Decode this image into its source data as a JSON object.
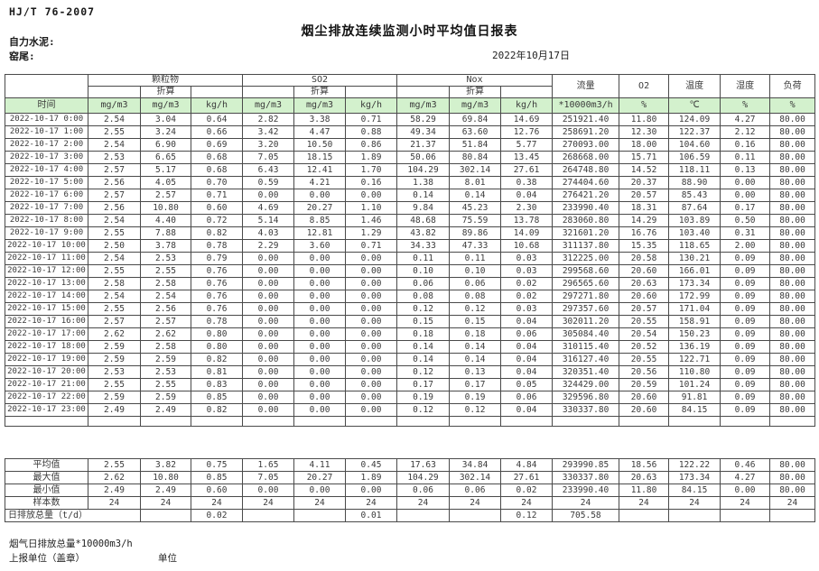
{
  "page": {
    "standard": "HJ/T 76-2007",
    "title": "烟尘排放连续监测小时平均值日报表",
    "company": "自力水泥:",
    "location": "窑尾:",
    "date": "2022年10月17日"
  },
  "table": {
    "time_header": "时间",
    "converted_label": "折算",
    "groups": [
      {
        "label": "颗粒物"
      },
      {
        "label": "SO2"
      },
      {
        "label": "Nox"
      }
    ],
    "single_cols": [
      "流量",
      "O2",
      "温度",
      "湿度",
      "负荷"
    ],
    "units": [
      "mg/m3",
      "mg/m3",
      "kg/h",
      "mg/m3",
      "mg/m3",
      "kg/h",
      "mg/m3",
      "mg/m3",
      "kg/h",
      "*10000m3/h",
      "%",
      "℃",
      "%",
      "%"
    ],
    "rows": [
      {
        "time": "2022-10-17 0:00",
        "values": [
          "2.54",
          "3.04",
          "0.64",
          "2.82",
          "3.38",
          "0.71",
          "58.29",
          "69.84",
          "14.69",
          "251921.40",
          "11.80",
          "124.09",
          "4.27",
          "80.00"
        ]
      },
      {
        "time": "2022-10-17 1:00",
        "values": [
          "2.55",
          "3.24",
          "0.66",
          "3.42",
          "4.47",
          "0.88",
          "49.34",
          "63.60",
          "12.76",
          "258691.20",
          "12.30",
          "122.37",
          "2.12",
          "80.00"
        ]
      },
      {
        "time": "2022-10-17 2:00",
        "values": [
          "2.54",
          "6.90",
          "0.69",
          "3.20",
          "10.50",
          "0.86",
          "21.37",
          "51.84",
          "5.77",
          "270093.00",
          "18.00",
          "104.60",
          "0.16",
          "80.00"
        ]
      },
      {
        "time": "2022-10-17 3:00",
        "values": [
          "2.53",
          "6.65",
          "0.68",
          "7.05",
          "18.15",
          "1.89",
          "50.06",
          "80.84",
          "13.45",
          "268668.00",
          "15.71",
          "106.59",
          "0.11",
          "80.00"
        ]
      },
      {
        "time": "2022-10-17 4:00",
        "values": [
          "2.57",
          "5.17",
          "0.68",
          "6.43",
          "12.41",
          "1.70",
          "104.29",
          "302.14",
          "27.61",
          "264748.80",
          "14.52",
          "118.11",
          "0.13",
          "80.00"
        ]
      },
      {
        "time": "2022-10-17 5:00",
        "values": [
          "2.56",
          "4.05",
          "0.70",
          "0.59",
          "4.21",
          "0.16",
          "1.38",
          "8.01",
          "0.38",
          "274404.60",
          "20.37",
          "88.90",
          "0.00",
          "80.00"
        ]
      },
      {
        "time": "2022-10-17 6:00",
        "values": [
          "2.57",
          "2.57",
          "0.71",
          "0.00",
          "0.00",
          "0.00",
          "0.14",
          "0.14",
          "0.04",
          "276421.20",
          "20.57",
          "85.43",
          "0.00",
          "80.00"
        ]
      },
      {
        "time": "2022-10-17 7:00",
        "values": [
          "2.56",
          "10.80",
          "0.60",
          "4.69",
          "20.27",
          "1.10",
          "9.84",
          "45.23",
          "2.30",
          "233990.40",
          "18.31",
          "87.64",
          "0.17",
          "80.00"
        ]
      },
      {
        "time": "2022-10-17 8:00",
        "values": [
          "2.54",
          "4.40",
          "0.72",
          "5.14",
          "8.85",
          "1.46",
          "48.68",
          "75.59",
          "13.78",
          "283060.80",
          "14.29",
          "103.89",
          "0.50",
          "80.00"
        ]
      },
      {
        "time": "2022-10-17 9:00",
        "values": [
          "2.55",
          "7.88",
          "0.82",
          "4.03",
          "12.81",
          "1.29",
          "43.82",
          "89.86",
          "14.09",
          "321601.20",
          "16.76",
          "103.40",
          "0.31",
          "80.00"
        ]
      },
      {
        "time": "2022-10-17 10:00",
        "values": [
          "2.50",
          "3.78",
          "0.78",
          "2.29",
          "3.60",
          "0.71",
          "34.33",
          "47.33",
          "10.68",
          "311137.80",
          "15.35",
          "118.65",
          "2.00",
          "80.00"
        ]
      },
      {
        "time": "2022-10-17 11:00",
        "values": [
          "2.54",
          "2.53",
          "0.79",
          "0.00",
          "0.00",
          "0.00",
          "0.11",
          "0.11",
          "0.03",
          "312225.00",
          "20.58",
          "130.21",
          "0.09",
          "80.00"
        ]
      },
      {
        "time": "2022-10-17 12:00",
        "values": [
          "2.55",
          "2.55",
          "0.76",
          "0.00",
          "0.00",
          "0.00",
          "0.10",
          "0.10",
          "0.03",
          "299568.60",
          "20.60",
          "166.01",
          "0.09",
          "80.00"
        ]
      },
      {
        "time": "2022-10-17 13:00",
        "values": [
          "2.58",
          "2.58",
          "0.76",
          "0.00",
          "0.00",
          "0.00",
          "0.06",
          "0.06",
          "0.02",
          "296565.60",
          "20.63",
          "173.34",
          "0.09",
          "80.00"
        ]
      },
      {
        "time": "2022-10-17 14:00",
        "values": [
          "2.54",
          "2.54",
          "0.76",
          "0.00",
          "0.00",
          "0.00",
          "0.08",
          "0.08",
          "0.02",
          "297271.80",
          "20.60",
          "172.99",
          "0.09",
          "80.00"
        ]
      },
      {
        "time": "2022-10-17 15:00",
        "values": [
          "2.55",
          "2.56",
          "0.76",
          "0.00",
          "0.00",
          "0.00",
          "0.12",
          "0.12",
          "0.03",
          "297357.60",
          "20.57",
          "171.04",
          "0.09",
          "80.00"
        ]
      },
      {
        "time": "2022-10-17 16:00",
        "values": [
          "2.57",
          "2.57",
          "0.78",
          "0.00",
          "0.00",
          "0.00",
          "0.15",
          "0.15",
          "0.04",
          "302011.20",
          "20.55",
          "158.91",
          "0.09",
          "80.00"
        ]
      },
      {
        "time": "2022-10-17 17:00",
        "values": [
          "2.62",
          "2.62",
          "0.80",
          "0.00",
          "0.00",
          "0.00",
          "0.18",
          "0.18",
          "0.06",
          "305084.40",
          "20.54",
          "150.23",
          "0.09",
          "80.00"
        ]
      },
      {
        "time": "2022-10-17 18:00",
        "values": [
          "2.59",
          "2.58",
          "0.80",
          "0.00",
          "0.00",
          "0.00",
          "0.14",
          "0.14",
          "0.04",
          "310115.40",
          "20.52",
          "136.19",
          "0.09",
          "80.00"
        ]
      },
      {
        "time": "2022-10-17 19:00",
        "values": [
          "2.59",
          "2.59",
          "0.82",
          "0.00",
          "0.00",
          "0.00",
          "0.14",
          "0.14",
          "0.04",
          "316127.40",
          "20.55",
          "122.71",
          "0.09",
          "80.00"
        ]
      },
      {
        "time": "2022-10-17 20:00",
        "values": [
          "2.53",
          "2.53",
          "0.81",
          "0.00",
          "0.00",
          "0.00",
          "0.12",
          "0.13",
          "0.04",
          "320351.40",
          "20.56",
          "110.80",
          "0.09",
          "80.00"
        ]
      },
      {
        "time": "2022-10-17 21:00",
        "values": [
          "2.55",
          "2.55",
          "0.83",
          "0.00",
          "0.00",
          "0.00",
          "0.17",
          "0.17",
          "0.05",
          "324429.00",
          "20.59",
          "101.24",
          "0.09",
          "80.00"
        ]
      },
      {
        "time": "2022-10-17 22:00",
        "values": [
          "2.59",
          "2.59",
          "0.85",
          "0.00",
          "0.00",
          "0.00",
          "0.19",
          "0.19",
          "0.06",
          "329596.80",
          "20.60",
          "91.81",
          "0.09",
          "80.00"
        ]
      },
      {
        "time": "2022-10-17 23:00",
        "values": [
          "2.49",
          "2.49",
          "0.82",
          "0.00",
          "0.00",
          "0.00",
          "0.12",
          "0.12",
          "0.04",
          "330337.80",
          "20.60",
          "84.15",
          "0.09",
          "80.00"
        ]
      }
    ],
    "summary": [
      {
        "label": "平均值",
        "values": [
          "2.55",
          "3.82",
          "0.75",
          "1.65",
          "4.11",
          "0.45",
          "17.63",
          "34.84",
          "4.84",
          "293990.85",
          "18.56",
          "122.22",
          "0.46",
          "80.00"
        ]
      },
      {
        "label": "最大值",
        "values": [
          "2.62",
          "10.80",
          "0.85",
          "7.05",
          "20.27",
          "1.89",
          "104.29",
          "302.14",
          "27.61",
          "330337.80",
          "20.63",
          "173.34",
          "4.27",
          "80.00"
        ]
      },
      {
        "label": "最小值",
        "values": [
          "2.49",
          "2.49",
          "0.60",
          "0.00",
          "0.00",
          "0.00",
          "0.06",
          "0.06",
          "0.02",
          "233990.40",
          "11.80",
          "84.15",
          "0.00",
          "80.00"
        ]
      },
      {
        "label": "样本数",
        "values": [
          "24",
          "24",
          "24",
          "24",
          "24",
          "24",
          "24",
          "24",
          "24",
          "24",
          "24",
          "24",
          "24",
          "24"
        ]
      }
    ],
    "daily_total": {
      "label": "日排放总量（t/d）",
      "values": [
        "",
        "0.02",
        "",
        "",
        "0.01",
        "",
        "",
        "0.12",
        "705.58",
        "",
        "",
        "",
        ""
      ]
    }
  },
  "footer": {
    "flue_total": "烟气日排放总量*10000m3/h",
    "report_unit": "上报单位（盖章）",
    "unit": "单位"
  },
  "colors": {
    "units_row_bg": "#d3f1cd",
    "border": "#4a4a4a",
    "text": "#3a3a3a"
  }
}
